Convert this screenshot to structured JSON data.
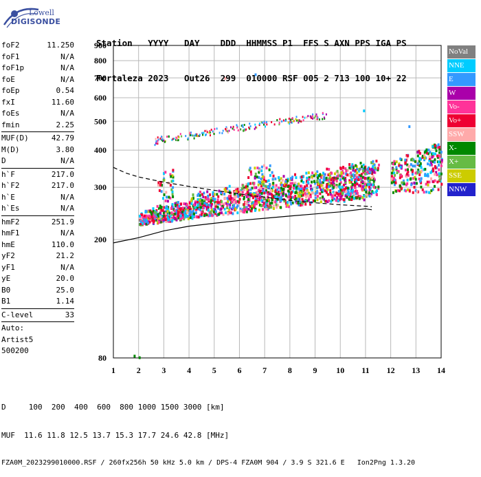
{
  "logo": {
    "company": "Lowell",
    "product": "DIGISONDE"
  },
  "header": {
    "labels": [
      "Station",
      "YYYY",
      "DAY",
      "DDD",
      "HHMMSS",
      "P1",
      "FFS",
      "S",
      "AXN",
      "PPS",
      "IGA",
      "PS"
    ],
    "values": [
      "Fortaleza",
      "2023",
      "Out26",
      "299",
      "010000",
      "RSF",
      "005",
      "2",
      "713",
      "100",
      "10+",
      "22"
    ]
  },
  "params": [
    {
      "type": "row",
      "label": "foF2",
      "value": "11.250"
    },
    {
      "type": "row",
      "label": "foF1",
      "value": "N/A"
    },
    {
      "type": "row",
      "label": "foF1p",
      "value": "N/A"
    },
    {
      "type": "row",
      "label": "foE",
      "value": "N/A"
    },
    {
      "type": "row",
      "label": "foEp",
      "value": "0.54"
    },
    {
      "type": "row",
      "label": "fxI",
      "value": "11.60"
    },
    {
      "type": "row",
      "label": "foEs",
      "value": "N/A"
    },
    {
      "type": "row",
      "label": "fmin",
      "value": "2.25"
    },
    {
      "type": "sep"
    },
    {
      "type": "row",
      "label": "MUF(D)",
      "value": "42.79"
    },
    {
      "type": "row",
      "label": "M(D)",
      "value": "3.80"
    },
    {
      "type": "row",
      "label": "D",
      "value": "N/A"
    },
    {
      "type": "sep"
    },
    {
      "type": "row",
      "label": "h`F",
      "value": "217.0"
    },
    {
      "type": "row",
      "label": "h`F2",
      "value": "217.0"
    },
    {
      "type": "row",
      "label": "h`E",
      "value": "N/A"
    },
    {
      "type": "row",
      "label": "h`Es",
      "value": "N/A"
    },
    {
      "type": "sep"
    },
    {
      "type": "row",
      "label": "hmF2",
      "value": "251.9"
    },
    {
      "type": "row",
      "label": "hmF1",
      "value": "N/A"
    },
    {
      "type": "row",
      "label": "hmE",
      "value": "110.0"
    },
    {
      "type": "row",
      "label": "yF2",
      "value": "21.2"
    },
    {
      "type": "row",
      "label": "yF1",
      "value": "N/A"
    },
    {
      "type": "row",
      "label": "yE",
      "value": "20.0"
    },
    {
      "type": "row",
      "label": "B0",
      "value": "25.0"
    },
    {
      "type": "row",
      "label": "B1",
      "value": "1.14"
    },
    {
      "type": "sep"
    },
    {
      "type": "row",
      "label": "C-level",
      "value": "33"
    },
    {
      "type": "sep"
    },
    {
      "type": "text",
      "label": "Auto:"
    },
    {
      "type": "text",
      "label": "Artist5"
    },
    {
      "type": "text",
      "label": "500200"
    }
  ],
  "legend": [
    {
      "label": "NoVal",
      "color": "#808080"
    },
    {
      "label": "NNE",
      "color": "#00ccff"
    },
    {
      "label": "E",
      "color": "#3399ff"
    },
    {
      "label": "W",
      "color": "#aa00aa"
    },
    {
      "label": "Vo-",
      "color": "#ff3399"
    },
    {
      "label": "Vo+",
      "color": "#ee0033"
    },
    {
      "label": "SSW",
      "color": "#ffaaaa"
    },
    {
      "label": "X-",
      "color": "#008800"
    },
    {
      "label": "X+",
      "color": "#66bb44"
    },
    {
      "label": "SSE",
      "color": "#cccc00"
    },
    {
      "label": "NNW",
      "color": "#2222cc"
    }
  ],
  "footer": {
    "line1": "D     100  200  400  600  800 1000 1500 3000 [km]",
    "line2": "MUF  11.6 11.8 12.5 13.7 15.3 17.7 24.6 42.8 [MHz]",
    "line3": "FZA0M_2023299010000.RSF / 260fx256h 50 kHz 5.0 km / DPS-4 FZA0M 904 / 3.9 S 321.6 E   Ion2Png 1.3.20"
  },
  "chart_data": {
    "type": "scatter",
    "xlim": [
      1,
      14
    ],
    "ylim": [
      80,
      900
    ],
    "xticks": [
      1,
      2,
      3,
      4,
      5,
      6,
      7,
      8,
      9,
      10,
      11,
      12,
      13,
      14
    ],
    "yticks": [
      80,
      200,
      300,
      400,
      500,
      600,
      700,
      800,
      900
    ],
    "grid": true,
    "ylog": true,
    "traces": [
      {
        "name": "",
        "style": "solid",
        "x": [
          1.0,
          2.0,
          3.0,
          4.0,
          5.0,
          6.0,
          7.0,
          8.0,
          9.0,
          10.0,
          11.0,
          11.25
        ],
        "y": [
          195,
          203,
          214,
          222,
          227,
          232,
          236,
          240,
          244,
          248,
          254,
          252
        ]
      },
      {
        "name": "",
        "style": "dashed",
        "x": [
          1.0,
          1.5,
          2.0,
          3.0,
          4.0,
          5.0,
          6.0,
          7.0,
          8.0,
          9.0,
          10.0,
          11.0,
          11.25
        ],
        "y": [
          350,
          335,
          325,
          312,
          302,
          293,
          285,
          278,
          271,
          266,
          262,
          259,
          258
        ]
      }
    ],
    "echoes": {
      "F_low": {
        "x_range": [
          2.0,
          11.5
        ],
        "h_base": [
          225,
          300
        ]
      },
      "F_high_multi": {
        "x_range": [
          2.5,
          9.5
        ],
        "h_base": [
          430,
          540
        ]
      },
      "spread_high_freq": {
        "x_range": [
          12.0,
          14.0
        ],
        "h_base": [
          290,
          420
        ]
      },
      "isolated": [
        {
          "x": 1.8,
          "y": 82
        },
        {
          "x": 2.0,
          "y": 81
        },
        {
          "x": 6.6,
          "y": 725
        },
        {
          "x": 5.4,
          "y": 705
        },
        {
          "x": 12.7,
          "y": 485
        },
        {
          "x": 10.9,
          "y": 548
        }
      ]
    }
  }
}
